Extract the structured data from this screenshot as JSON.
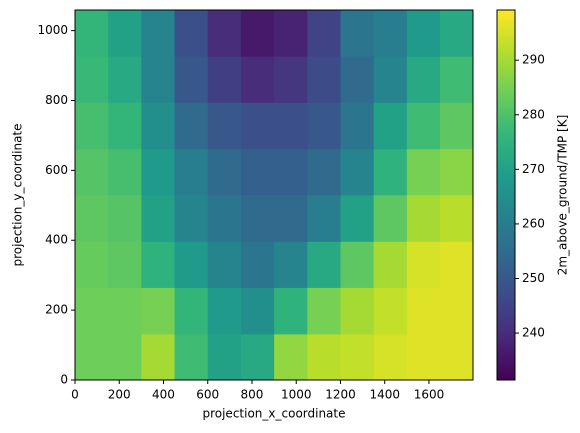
{
  "chart_data": {
    "type": "heatmap",
    "xlabel": "projection_x_coordinate",
    "ylabel": "projection_y_coordinate",
    "colorbar_label": "2m_above_ground/TMP [K]",
    "colormap": "viridis",
    "xlim": [
      0,
      1799
    ],
    "xticks": [
      0,
      200,
      400,
      600,
      800,
      1000,
      1200,
      1400,
      1600
    ],
    "ylim": [
      0,
      1059
    ],
    "yticks": [
      0,
      200,
      400,
      600,
      800,
      1000
    ],
    "clim": [
      231.4,
      299.2
    ],
    "cticks": [
      240,
      250,
      260,
      270,
      280,
      290
    ],
    "xbins": [
      0,
      150,
      300,
      450,
      600,
      750,
      900,
      1050,
      1200,
      1350,
      1500,
      1650,
      1799
    ],
    "ybins": [
      0,
      132,
      265,
      397,
      530,
      662,
      795,
      927,
      1059
    ],
    "z": [
      [
        284,
        284,
        290,
        278,
        270,
        272,
        288,
        292,
        293,
        295,
        296,
        296
      ],
      [
        284,
        284,
        285,
        276,
        268,
        265,
        275,
        285,
        290,
        293,
        296,
        296
      ],
      [
        283,
        282,
        275,
        268,
        262,
        258,
        262,
        272,
        282,
        290,
        295,
        296
      ],
      [
        282,
        281,
        270,
        262,
        258,
        255,
        255,
        260,
        270,
        282,
        290,
        292
      ],
      [
        281,
        279,
        268,
        260,
        255,
        252,
        252,
        255,
        262,
        275,
        285,
        287
      ],
      [
        279,
        276,
        265,
        255,
        250,
        248,
        248,
        250,
        258,
        270,
        278,
        282
      ],
      [
        277,
        272,
        262,
        250,
        244,
        240,
        242,
        247,
        255,
        262,
        272,
        278
      ],
      [
        276,
        270,
        262,
        248,
        240,
        236,
        238,
        245,
        258,
        260,
        268,
        272
      ]
    ]
  }
}
